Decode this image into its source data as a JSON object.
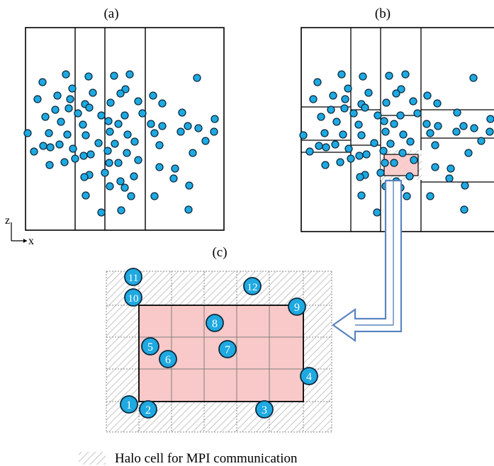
{
  "colors": {
    "particle_fill": "#1fa9e1",
    "particle_stroke": "#0b2a3f",
    "frame": "#000000",
    "domain_fill": "#f8c9c8",
    "halo_hatch": "#c9c9c9",
    "halo_grid": "#8a8a8a",
    "arrow": "#5b84bf"
  },
  "panels": {
    "a": {
      "label": "(a)"
    },
    "b": {
      "label": "(b)"
    },
    "c": {
      "label": "(c)"
    }
  },
  "axes": {
    "vertical": "z",
    "horizontal": "x"
  },
  "legend": {
    "halo_label": "Halo cell for MPI communication"
  },
  "particle_ids": [
    "1",
    "2",
    "3",
    "4",
    "5",
    "6",
    "7",
    "8",
    "9",
    "10",
    "11",
    "12"
  ]
}
